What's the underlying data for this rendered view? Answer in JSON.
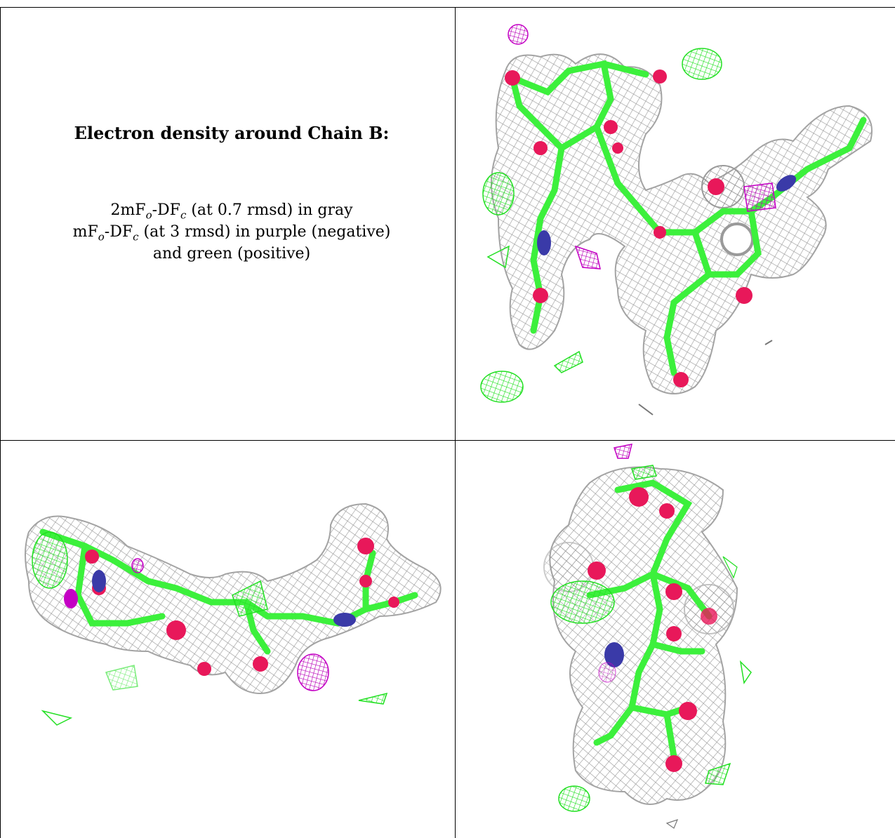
{
  "legend": {
    "title": "Electron density around Chain B:",
    "line1_a": "2mF",
    "line1_sub1": "o",
    "line1_b": "-DF",
    "line1_sub2": "c",
    "line1_c": " (at 0.7 rmsd) in gray",
    "line2_a": "mF",
    "line2_sub1": "o",
    "line2_b": "-DF",
    "line2_sub2": "c",
    "line2_c": " (at 3 rmsd) in purple (negative)",
    "line3": "and green (positive)"
  },
  "colors": {
    "mesh_gray": "#9a9a9a",
    "positive_green": "#2ee82e",
    "negative_purple": "#c400c4",
    "carbon": "#3cf03c",
    "oxygen": "#e8185a",
    "nitrogen": "#3a3aa8"
  },
  "panels": [
    {
      "name": "top-right-view",
      "image": "electron-density-view-1"
    },
    {
      "name": "bottom-left-view",
      "image": "electron-density-view-2"
    },
    {
      "name": "bottom-right-view",
      "image": "electron-density-view-3"
    }
  ]
}
